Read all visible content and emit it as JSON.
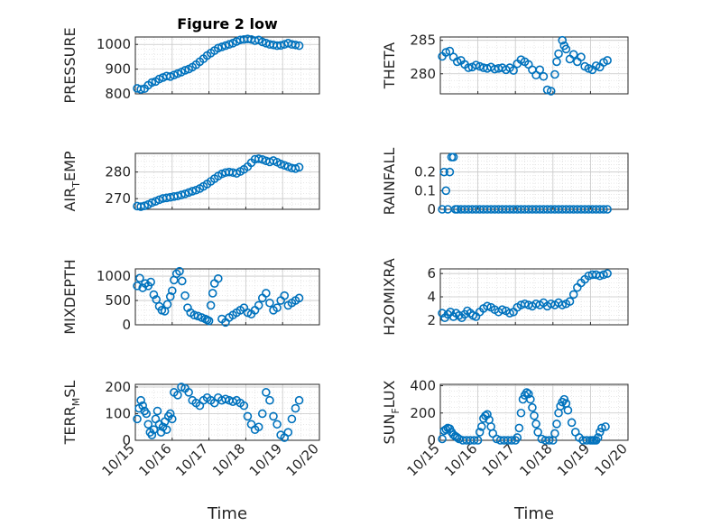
{
  "figure_title": "Figure 2 low",
  "colors": {
    "marker": "#0072BD",
    "axis": "#262626",
    "grid": "#c8c8c8"
  },
  "chart_data": [
    {
      "id": "pressure",
      "type": "scatter",
      "ylabel": "PRESSURE",
      "ylim": [
        800,
        1030
      ],
      "yticks": [
        800,
        900,
        1000
      ],
      "xlim": [
        0,
        5
      ],
      "x": [
        0.05,
        0.15,
        0.25,
        0.35,
        0.45,
        0.55,
        0.65,
        0.75,
        0.85,
        0.95,
        1.05,
        1.15,
        1.25,
        1.35,
        1.45,
        1.55,
        1.65,
        1.75,
        1.85,
        1.95,
        2.05,
        2.15,
        2.25,
        2.35,
        2.45,
        2.55,
        2.65,
        2.75,
        2.85,
        2.95,
        3.05,
        3.15,
        3.25,
        3.35,
        3.45,
        3.55,
        3.65,
        3.75,
        3.85,
        3.95,
        4.05,
        4.15,
        4.25,
        4.35,
        4.45
      ],
      "y": [
        822,
        818,
        821,
        835,
        846,
        850,
        860,
        866,
        872,
        870,
        876,
        882,
        888,
        895,
        900,
        908,
        918,
        930,
        942,
        955,
        965,
        975,
        985,
        990,
        995,
        1000,
        1005,
        1012,
        1018,
        1020,
        1022,
        1020,
        1015,
        1018,
        1010,
        1005,
        1000,
        998,
        995,
        996,
        1000,
        1005,
        1000,
        998,
        995
      ],
      "xtick_labels": []
    },
    {
      "id": "theta",
      "type": "scatter",
      "ylabel": "THETA",
      "ylim": [
        277,
        285.5
      ],
      "yticks": [
        280,
        285
      ],
      "xlim": [
        0,
        5
      ],
      "x": [
        0.05,
        0.15,
        0.25,
        0.35,
        0.45,
        0.55,
        0.65,
        0.75,
        0.85,
        0.95,
        1.05,
        1.15,
        1.25,
        1.35,
        1.45,
        1.55,
        1.65,
        1.75,
        1.85,
        1.95,
        2.05,
        2.15,
        2.25,
        2.35,
        2.45,
        2.55,
        2.65,
        2.75,
        2.85,
        2.95,
        3.05,
        3.1,
        3.15,
        3.25,
        3.3,
        3.35,
        3.45,
        3.55,
        3.65,
        3.75,
        3.85,
        3.95,
        4.05,
        4.15,
        4.25,
        4.35,
        4.45
      ],
      "y": [
        282.6,
        283.2,
        283.4,
        282.5,
        281.8,
        282.0,
        281.4,
        280.9,
        281.0,
        281.3,
        281.1,
        280.9,
        280.8,
        281.0,
        280.7,
        280.8,
        280.9,
        280.6,
        280.9,
        280.5,
        281.5,
        282.1,
        281.8,
        281.4,
        280.6,
        279.8,
        280.6,
        279.6,
        277.6,
        277.4,
        279.9,
        281.8,
        283.0,
        285.0,
        284.2,
        283.7,
        282.2,
        282.9,
        281.8,
        282.5,
        281.1,
        280.8,
        280.6,
        281.2,
        281.0,
        281.7,
        282.0
      ],
      "xtick_labels": []
    },
    {
      "id": "air_temp",
      "type": "scatter",
      "ylabel_main": "AIR",
      "ylabel_sub": "T",
      "ylabel_rest": "EMP",
      "ylim": [
        266,
        287
      ],
      "yticks": [
        270,
        280
      ],
      "xlim": [
        0,
        5
      ],
      "x": [
        0.05,
        0.15,
        0.25,
        0.35,
        0.45,
        0.55,
        0.65,
        0.75,
        0.85,
        0.95,
        1.05,
        1.15,
        1.25,
        1.35,
        1.45,
        1.55,
        1.65,
        1.75,
        1.85,
        1.95,
        2.05,
        2.15,
        2.25,
        2.35,
        2.45,
        2.55,
        2.65,
        2.75,
        2.85,
        2.95,
        3.05,
        3.15,
        3.25,
        3.35,
        3.45,
        3.55,
        3.65,
        3.75,
        3.85,
        3.95,
        4.05,
        4.15,
        4.25,
        4.35,
        4.45
      ],
      "y": [
        267.2,
        267.0,
        267.3,
        267.8,
        268.5,
        269.0,
        269.6,
        270.1,
        270.3,
        270.5,
        270.8,
        271.0,
        271.4,
        271.8,
        272.3,
        272.8,
        273.2,
        273.8,
        274.6,
        275.5,
        276.5,
        277.5,
        278.5,
        279.3,
        279.8,
        280.0,
        279.8,
        279.5,
        280.2,
        281.0,
        282.0,
        283.5,
        284.8,
        285.0,
        284.7,
        284.2,
        283.8,
        284.3,
        283.7,
        283.0,
        282.5,
        282.0,
        281.5,
        281.3,
        281.8
      ],
      "xtick_labels": []
    },
    {
      "id": "rainfall",
      "type": "scatter",
      "ylabel": "RAINFALL",
      "ylim": [
        0,
        0.3
      ],
      "yticks": [
        0,
        0.1,
        0.2
      ],
      "xlim": [
        0,
        5
      ],
      "x": [
        0.05,
        0.1,
        0.15,
        0.2,
        0.25,
        0.3,
        0.35,
        0.4,
        0.45,
        0.55,
        0.65,
        0.75,
        0.85,
        0.95,
        1.05,
        1.15,
        1.25,
        1.35,
        1.45,
        1.55,
        1.65,
        1.75,
        1.85,
        1.95,
        2.05,
        2.15,
        2.25,
        2.35,
        2.45,
        2.55,
        2.65,
        2.75,
        2.85,
        2.95,
        3.05,
        3.15,
        3.25,
        3.35,
        3.45,
        3.55,
        3.65,
        3.75,
        3.85,
        3.95,
        4.05,
        4.15,
        4.25,
        4.35,
        4.45
      ],
      "y": [
        0,
        0.2,
        0.1,
        0,
        0.2,
        0.28,
        0.28,
        0,
        0,
        0,
        0,
        0,
        0,
        0,
        0,
        0,
        0,
        0,
        0,
        0,
        0,
        0,
        0,
        0,
        0,
        0,
        0,
        0,
        0,
        0,
        0,
        0,
        0,
        0,
        0,
        0,
        0,
        0,
        0,
        0,
        0,
        0,
        0,
        0,
        0,
        0,
        0,
        0,
        0
      ],
      "xtick_labels": []
    },
    {
      "id": "mixdepth",
      "type": "scatter",
      "ylabel": "MIXDEPTH",
      "ylim": [
        0,
        1150
      ],
      "yticks": [
        0,
        500,
        1000
      ],
      "xlim": [
        0,
        5
      ],
      "x": [
        0.05,
        0.12,
        0.2,
        0.27,
        0.35,
        0.42,
        0.5,
        0.57,
        0.65,
        0.72,
        0.8,
        0.87,
        0.95,
        1.0,
        1.05,
        1.12,
        1.2,
        1.27,
        1.35,
        1.42,
        1.5,
        1.6,
        1.7,
        1.8,
        1.9,
        1.95,
        2.0,
        2.05,
        2.1,
        2.15,
        2.25,
        2.35,
        2.45,
        2.55,
        2.65,
        2.75,
        2.85,
        2.95,
        3.05,
        3.15,
        3.25,
        3.35,
        3.45,
        3.55,
        3.65,
        3.75,
        3.85,
        3.95,
        4.05,
        4.15,
        4.25,
        4.35,
        4.45
      ],
      "y": [
        800,
        960,
        760,
        850,
        800,
        880,
        620,
        520,
        380,
        300,
        280,
        420,
        580,
        700,
        920,
        1050,
        1100,
        900,
        600,
        350,
        250,
        200,
        180,
        150,
        120,
        100,
        80,
        400,
        650,
        850,
        950,
        120,
        50,
        150,
        200,
        250,
        300,
        350,
        250,
        220,
        300,
        400,
        550,
        650,
        450,
        300,
        350,
        500,
        600,
        400,
        450,
        500,
        550
      ],
      "xtick_labels": []
    },
    {
      "id": "h2omixra",
      "type": "scatter",
      "ylabel": "H2OMIXRA",
      "ylim": [
        1.6,
        6.4
      ],
      "yticks": [
        2,
        4,
        6
      ],
      "xlim": [
        0,
        5
      ],
      "x": [
        0.05,
        0.12,
        0.2,
        0.27,
        0.35,
        0.42,
        0.5,
        0.57,
        0.65,
        0.72,
        0.8,
        0.87,
        0.95,
        1.05,
        1.15,
        1.25,
        1.35,
        1.45,
        1.55,
        1.65,
        1.75,
        1.85,
        1.95,
        2.05,
        2.15,
        2.25,
        2.35,
        2.45,
        2.55,
        2.65,
        2.75,
        2.85,
        2.95,
        3.05,
        3.15,
        3.25,
        3.35,
        3.45,
        3.55,
        3.65,
        3.75,
        3.85,
        3.95,
        4.05,
        4.15,
        4.25,
        4.35,
        4.45
      ],
      "y": [
        2.6,
        2.2,
        2.5,
        2.7,
        2.3,
        2.6,
        2.4,
        2.2,
        2.5,
        2.8,
        2.6,
        2.4,
        2.3,
        2.7,
        3.0,
        3.2,
        3.1,
        2.9,
        2.7,
        2.9,
        2.8,
        2.6,
        2.7,
        3.1,
        3.3,
        3.4,
        3.3,
        3.2,
        3.4,
        3.3,
        3.5,
        3.2,
        3.4,
        3.3,
        3.5,
        3.3,
        3.4,
        3.6,
        4.2,
        4.8,
        5.2,
        5.5,
        5.8,
        5.9,
        5.9,
        5.8,
        5.9,
        6.0
      ],
      "xtick_labels": []
    },
    {
      "id": "terr_msl",
      "type": "scatter",
      "ylabel_main": "TERR",
      "ylabel_sub": "M",
      "ylabel_rest": "SL",
      "ylim": [
        0,
        210
      ],
      "yticks": [
        0,
        100,
        200
      ],
      "xlim": [
        0,
        5
      ],
      "x": [
        0.05,
        0.1,
        0.15,
        0.2,
        0.25,
        0.3,
        0.35,
        0.4,
        0.45,
        0.5,
        0.55,
        0.6,
        0.65,
        0.7,
        0.75,
        0.8,
        0.85,
        0.9,
        0.95,
        1.0,
        1.05,
        1.15,
        1.25,
        1.35,
        1.45,
        1.55,
        1.65,
        1.75,
        1.85,
        1.95,
        2.05,
        2.15,
        2.25,
        2.35,
        2.45,
        2.55,
        2.65,
        2.75,
        2.85,
        2.95,
        3.05,
        3.15,
        3.25,
        3.35,
        3.45,
        3.55,
        3.65,
        3.75,
        3.85,
        3.95,
        4.05,
        4.15,
        4.25,
        4.35,
        4.45
      ],
      "y": [
        80,
        120,
        150,
        130,
        110,
        100,
        60,
        30,
        20,
        40,
        80,
        110,
        60,
        30,
        50,
        70,
        40,
        90,
        100,
        80,
        180,
        170,
        200,
        195,
        180,
        150,
        140,
        130,
        150,
        160,
        150,
        140,
        160,
        150,
        155,
        150,
        145,
        150,
        140,
        130,
        90,
        60,
        40,
        50,
        100,
        180,
        150,
        90,
        60,
        20,
        10,
        30,
        80,
        120,
        150
      ],
      "xtick_labels": [
        "10/15",
        "10/16",
        "10/17",
        "10/18",
        "10/19",
        "10/20"
      ],
      "xlabel": "Time"
    },
    {
      "id": "sun_flux",
      "type": "scatter",
      "ylabel_main": "SUN",
      "ylabel_sub": "F",
      "ylabel_rest": "LUX",
      "ylim": [
        0,
        410
      ],
      "yticks": [
        0,
        200,
        400
      ],
      "xlim": [
        0,
        5
      ],
      "x": [
        0.05,
        0.1,
        0.15,
        0.2,
        0.25,
        0.3,
        0.35,
        0.4,
        0.45,
        0.5,
        0.6,
        0.7,
        0.8,
        0.9,
        1.0,
        1.05,
        1.1,
        1.15,
        1.2,
        1.25,
        1.3,
        1.35,
        1.4,
        1.5,
        1.6,
        1.7,
        1.8,
        1.9,
        2.0,
        2.05,
        2.1,
        2.15,
        2.2,
        2.25,
        2.3,
        2.35,
        2.4,
        2.45,
        2.5,
        2.55,
        2.6,
        2.7,
        2.8,
        2.9,
        3.0,
        3.05,
        3.1,
        3.15,
        3.2,
        3.25,
        3.3,
        3.35,
        3.4,
        3.5,
        3.6,
        3.7,
        3.8,
        3.9,
        4.0,
        4.05,
        4.1,
        4.15,
        4.2,
        4.25,
        4.3,
        4.4
      ],
      "y": [
        10,
        70,
        80,
        90,
        85,
        60,
        40,
        30,
        20,
        10,
        0,
        0,
        0,
        0,
        0,
        60,
        100,
        160,
        180,
        190,
        150,
        100,
        50,
        10,
        0,
        0,
        0,
        0,
        0,
        20,
        90,
        200,
        300,
        330,
        350,
        340,
        300,
        240,
        180,
        120,
        60,
        10,
        0,
        0,
        0,
        50,
        120,
        200,
        250,
        280,
        300,
        270,
        220,
        130,
        60,
        20,
        0,
        0,
        0,
        0,
        0,
        0,
        20,
        60,
        90,
        100
      ],
      "xtick_labels": [
        "10/15",
        "10/16",
        "10/17",
        "10/18",
        "10/19",
        "10/20"
      ],
      "xlabel": "Time"
    }
  ]
}
